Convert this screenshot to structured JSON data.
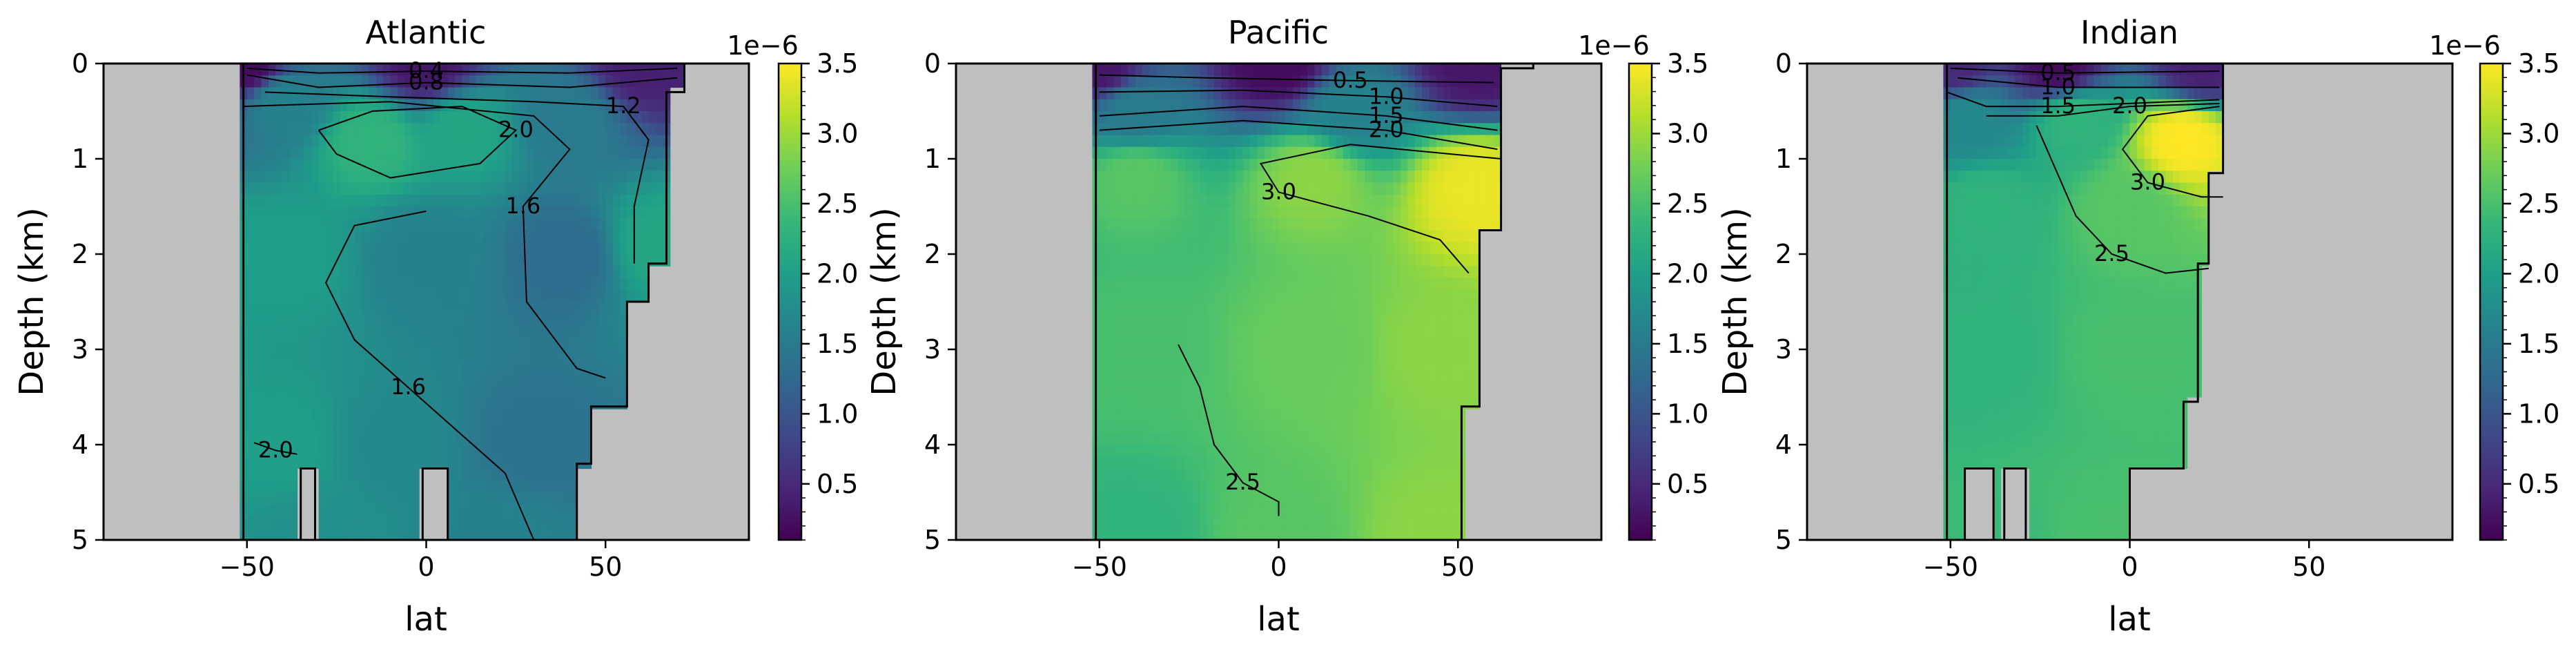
{
  "figure": {
    "exponent_label": "1e−6",
    "colormap_stops": [
      "#440154",
      "#482878",
      "#3e4a89",
      "#31688e",
      "#26828e",
      "#1f9e89",
      "#35b779",
      "#6ece58",
      "#b5de2b",
      "#fde725"
    ],
    "land_color": "#bfbfbf"
  },
  "chart_data": [
    {
      "type": "heatmap",
      "title": "Atlantic",
      "xlabel": "lat",
      "ylabel": "Depth (km)",
      "xlim": [
        -90,
        90
      ],
      "ylim": [
        5,
        0
      ],
      "x_ticks": [
        -50,
        0,
        50
      ],
      "y_ticks": [
        0,
        1,
        2,
        3,
        4,
        5
      ],
      "colorbar": {
        "range": [
          0.1,
          3.5
        ],
        "ticks": [
          0.5,
          1.0,
          1.5,
          2.0,
          2.5,
          3.0,
          3.5
        ],
        "exponent": "1e−6"
      },
      "ocean_extent": [
        {
          "lat_min": -51,
          "lat_max": 72,
          "depth_max": 0.3
        },
        {
          "lat_min": -51,
          "lat_max": 67,
          "depth_max": 2.1
        },
        {
          "lat_min": -51,
          "lat_max": 62,
          "depth_max": 2.5
        },
        {
          "lat_min": -51,
          "lat_max": 56,
          "depth_max": 3.6
        },
        {
          "lat_min": -51,
          "lat_max": 46,
          "depth_max": 4.2
        },
        {
          "lat_min": -51,
          "lat_max": 42,
          "depth_max": 5.0
        }
      ],
      "land_ridges": [
        {
          "lat_min": -35,
          "lat_max": -31,
          "depth_top": 4.25
        },
        {
          "lat_min": -1,
          "lat_max": 6,
          "depth_top": 4.25
        }
      ],
      "field_samples": [
        {
          "lat": -50,
          "depth": 0.0,
          "value": 0.2
        },
        {
          "lat": 0,
          "depth": 0.0,
          "value": 0.3
        },
        {
          "lat": 60,
          "depth": 0.0,
          "value": 0.4
        },
        {
          "lat": -40,
          "depth": 0.4,
          "value": 1.6
        },
        {
          "lat": -15,
          "depth": 0.8,
          "value": 2.3
        },
        {
          "lat": 10,
          "depth": 0.7,
          "value": 2.1
        },
        {
          "lat": 40,
          "depth": 0.6,
          "value": 1.5
        },
        {
          "lat": -40,
          "depth": 2.0,
          "value": 2.0
        },
        {
          "lat": 0,
          "depth": 2.0,
          "value": 1.6
        },
        {
          "lat": 40,
          "depth": 2.0,
          "value": 1.3
        },
        {
          "lat": 64,
          "depth": 1.9,
          "value": 2.1
        },
        {
          "lat": -40,
          "depth": 4.0,
          "value": 2.0
        },
        {
          "lat": -10,
          "depth": 4.0,
          "value": 1.7
        },
        {
          "lat": 30,
          "depth": 4.0,
          "value": 1.4
        },
        {
          "lat": -30,
          "depth": 5.0,
          "value": 1.8
        },
        {
          "lat": 20,
          "depth": 5.0,
          "value": 1.6
        }
      ],
      "contours": [
        {
          "level": "0.4",
          "points": [
            [
              -50,
              0.05
            ],
            [
              -30,
              0.1
            ],
            [
              0,
              0.08
            ],
            [
              40,
              0.1
            ],
            [
              70,
              0.05
            ]
          ]
        },
        {
          "level": "0.8",
          "points": [
            [
              -50,
              0.12
            ],
            [
              -30,
              0.25
            ],
            [
              0,
              0.2
            ],
            [
              40,
              0.25
            ],
            [
              70,
              0.15
            ]
          ]
        },
        {
          "level": "1.2",
          "points": [
            [
              -45,
              0.3
            ],
            [
              -10,
              0.35
            ],
            [
              30,
              0.4
            ],
            [
              55,
              0.45
            ],
            [
              62,
              0.8
            ],
            [
              58,
              1.5
            ],
            [
              58,
              2.1
            ]
          ]
        },
        {
          "level": "2.0",
          "points": [
            [
              -30,
              0.7
            ],
            [
              -25,
              0.95
            ],
            [
              -10,
              1.2
            ],
            [
              15,
              1.05
            ],
            [
              25,
              0.7
            ],
            [
              10,
              0.45
            ],
            [
              -15,
              0.5
            ],
            [
              -30,
              0.7
            ]
          ]
        },
        {
          "level": "1.6",
          "points": [
            [
              -51,
              0.45
            ],
            [
              -10,
              0.4
            ],
            [
              30,
              0.55
            ],
            [
              40,
              0.9
            ],
            [
              27,
              1.5
            ],
            [
              28,
              2.5
            ],
            [
              42,
              3.2
            ],
            [
              50,
              3.3
            ]
          ]
        },
        {
          "level": "1.6",
          "points": [
            [
              0,
              1.55
            ],
            [
              -20,
              1.7
            ],
            [
              -28,
              2.3
            ],
            [
              -20,
              2.9
            ],
            [
              -5,
              3.4
            ],
            [
              10,
              3.9
            ],
            [
              22,
              4.3
            ],
            [
              30,
              5.0
            ]
          ]
        },
        {
          "level": "2.0",
          "points": [
            [
              -48,
              3.98
            ],
            [
              -42,
              4.06
            ],
            [
              -36,
              4.1
            ]
          ]
        }
      ]
    },
    {
      "type": "heatmap",
      "title": "Pacific",
      "xlabel": "lat",
      "ylabel": "Depth (km)",
      "xlim": [
        -90,
        90
      ],
      "ylim": [
        5,
        0
      ],
      "x_ticks": [
        -50,
        0,
        50
      ],
      "y_ticks": [
        0,
        1,
        2,
        3,
        4,
        5
      ],
      "colorbar": {
        "range": [
          0.1,
          3.5
        ],
        "ticks": [
          0.5,
          1.0,
          1.5,
          2.0,
          2.5,
          3.0,
          3.5
        ],
        "exponent": "1e−6"
      },
      "ocean_extent": [
        {
          "lat_min": -51,
          "lat_max": 71,
          "depth_max": 0.05
        },
        {
          "lat_min": -51,
          "lat_max": 62,
          "depth_max": 1.75
        },
        {
          "lat_min": -51,
          "lat_max": 56,
          "depth_max": 3.6
        },
        {
          "lat_min": -51,
          "lat_max": 51,
          "depth_max": 5.0
        }
      ],
      "land_ridges": [],
      "field_samples": [
        {
          "lat": -50,
          "depth": 0.0,
          "value": 0.3
        },
        {
          "lat": 0,
          "depth": 0.0,
          "value": 0.2
        },
        {
          "lat": 55,
          "depth": 0.0,
          "value": 0.3
        },
        {
          "lat": -40,
          "depth": 0.5,
          "value": 1.5
        },
        {
          "lat": 20,
          "depth": 0.5,
          "value": 1.6
        },
        {
          "lat": -40,
          "depth": 1.2,
          "value": 2.6
        },
        {
          "lat": 10,
          "depth": 1.2,
          "value": 2.9
        },
        {
          "lat": 55,
          "depth": 1.3,
          "value": 3.4
        },
        {
          "lat": -40,
          "depth": 3.0,
          "value": 2.5
        },
        {
          "lat": 10,
          "depth": 3.0,
          "value": 2.7
        },
        {
          "lat": 45,
          "depth": 3.0,
          "value": 2.9
        },
        {
          "lat": -40,
          "depth": 5.0,
          "value": 2.3
        },
        {
          "lat": 0,
          "depth": 5.0,
          "value": 2.6
        },
        {
          "lat": 45,
          "depth": 5.0,
          "value": 2.9
        }
      ],
      "contours": [
        {
          "level": "0.5",
          "points": [
            [
              -50,
              0.12
            ],
            [
              -20,
              0.15
            ],
            [
              20,
              0.18
            ],
            [
              60,
              0.2
            ]
          ]
        },
        {
          "level": "1.0",
          "points": [
            [
              -50,
              0.3
            ],
            [
              -10,
              0.28
            ],
            [
              30,
              0.35
            ],
            [
              61,
              0.45
            ]
          ]
        },
        {
          "level": "1.5",
          "points": [
            [
              -50,
              0.55
            ],
            [
              -10,
              0.45
            ],
            [
              30,
              0.55
            ],
            [
              61,
              0.7
            ]
          ]
        },
        {
          "level": "2.0",
          "points": [
            [
              -50,
              0.7
            ],
            [
              -10,
              0.6
            ],
            [
              30,
              0.7
            ],
            [
              61,
              0.9
            ]
          ]
        },
        {
          "level": "3.0",
          "points": [
            [
              62,
              1.0
            ],
            [
              20,
              0.85
            ],
            [
              -5,
              1.05
            ],
            [
              0,
              1.35
            ],
            [
              25,
              1.6
            ],
            [
              45,
              1.85
            ],
            [
              53,
              2.2
            ]
          ]
        },
        {
          "level": "2.5",
          "points": [
            [
              -28,
              2.95
            ],
            [
              -22,
              3.4
            ],
            [
              -18,
              4.0
            ],
            [
              -10,
              4.4
            ],
            [
              0,
              4.6
            ],
            [
              0,
              4.75
            ]
          ]
        }
      ]
    },
    {
      "type": "heatmap",
      "title": "Indian",
      "xlabel": "lat",
      "ylabel": "Depth (km)",
      "xlim": [
        -90,
        90
      ],
      "ylim": [
        5,
        0
      ],
      "x_ticks": [
        -50,
        0,
        50
      ],
      "y_ticks": [
        0,
        1,
        2,
        3,
        4,
        5
      ],
      "colorbar": {
        "range": [
          0.1,
          3.5
        ],
        "ticks": [
          0.5,
          1.0,
          1.5,
          2.0,
          2.5,
          3.0,
          3.5
        ],
        "exponent": "1e−6"
      },
      "ocean_extent": [
        {
          "lat_min": -51,
          "lat_max": 26,
          "depth_max": 1.15
        },
        {
          "lat_min": -51,
          "lat_max": 22,
          "depth_max": 2.1
        },
        {
          "lat_min": -51,
          "lat_max": 19,
          "depth_max": 3.55
        },
        {
          "lat_min": -51,
          "lat_max": 15,
          "depth_max": 4.25
        },
        {
          "lat_min": -51,
          "lat_max": 0,
          "depth_max": 5.0
        }
      ],
      "land_ridges": [
        {
          "lat_min": -46,
          "lat_max": -38,
          "depth_top": 4.25
        },
        {
          "lat_min": -35,
          "lat_max": -29,
          "depth_top": 4.25
        }
      ],
      "field_samples": [
        {
          "lat": -50,
          "depth": 0.0,
          "value": 0.5
        },
        {
          "lat": -20,
          "depth": 0.0,
          "value": 0.2
        },
        {
          "lat": 20,
          "depth": 0.0,
          "value": 0.4
        },
        {
          "lat": -45,
          "depth": 0.6,
          "value": 1.7
        },
        {
          "lat": -15,
          "depth": 0.6,
          "value": 2.3
        },
        {
          "lat": 15,
          "depth": 0.8,
          "value": 3.5
        },
        {
          "lat": -40,
          "depth": 1.5,
          "value": 2.3
        },
        {
          "lat": 0,
          "depth": 1.5,
          "value": 2.6
        },
        {
          "lat": -40,
          "depth": 3.0,
          "value": 2.3
        },
        {
          "lat": 0,
          "depth": 3.0,
          "value": 2.5
        },
        {
          "lat": -35,
          "depth": 5.0,
          "value": 2.4
        },
        {
          "lat": -10,
          "depth": 5.0,
          "value": 2.5
        }
      ],
      "contours": [
        {
          "level": "0.5",
          "points": [
            [
              -50,
              0.05
            ],
            [
              -20,
              0.1
            ],
            [
              25,
              0.08
            ]
          ]
        },
        {
          "level": "1.0",
          "points": [
            [
              -48,
              0.15
            ],
            [
              -20,
              0.25
            ],
            [
              25,
              0.25
            ]
          ]
        },
        {
          "level": "1.5",
          "points": [
            [
              -51,
              0.3
            ],
            [
              -40,
              0.45
            ],
            [
              -20,
              0.45
            ],
            [
              25,
              0.38
            ]
          ]
        },
        {
          "level": "2.0",
          "points": [
            [
              -40,
              0.55
            ],
            [
              -20,
              0.55
            ],
            [
              0,
              0.45
            ],
            [
              25,
              0.42
            ]
          ]
        },
        {
          "level": "3.0",
          "points": [
            [
              25,
              0.45
            ],
            [
              5,
              0.55
            ],
            [
              -2,
              0.9
            ],
            [
              5,
              1.25
            ],
            [
              20,
              1.4
            ],
            [
              26,
              1.4
            ]
          ]
        },
        {
          "level": "2.5",
          "points": [
            [
              -26,
              0.65
            ],
            [
              -15,
              1.6
            ],
            [
              -5,
              2.0
            ],
            [
              10,
              2.2
            ],
            [
              22,
              2.15
            ]
          ]
        }
      ]
    }
  ]
}
